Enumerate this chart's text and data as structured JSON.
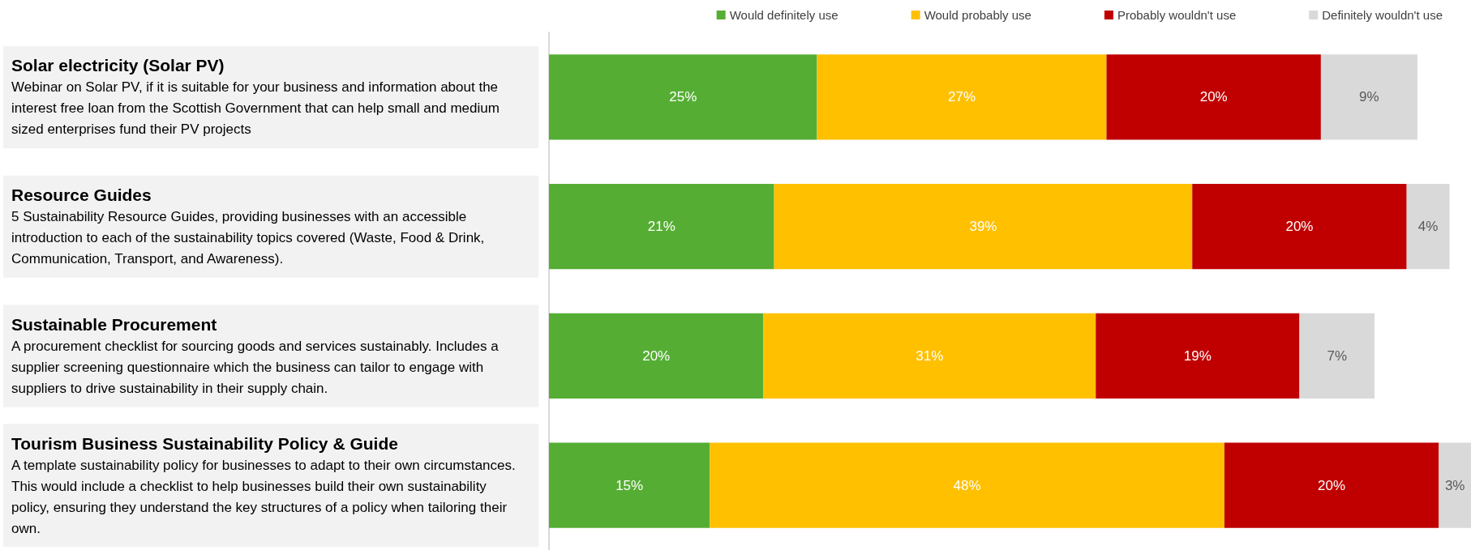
{
  "chart_data": {
    "type": "bar",
    "orientation": "horizontal",
    "stacked": true,
    "legend": "top right",
    "categories": [
      "Solar electricity (Solar PV)\nWebinar on Solar PV, if it is suitable for your business and information about the interest free loan from the Scottish Government that can help small and medium sized enterprises fund their PV projects",
      "Resource Guides\n5 Sustainability Resource Guides, providing businesses with an accessible introduction to each of the sustainability topics covered (Waste, Food & Drink, Communication, Transport, and Awareness).",
      "Sustainable Procurement\nA procurement checklist for sourcing goods and services sustainably. Includes a supplier screening questionnaire which the business can tailor to engage with suppliers to drive sustainability in their supply chain.",
      "Tourism Business Sustainability Policy & Guide\nA template sustainability policy for businesses to adapt to their own circumstances. This would include a checklist to help businesses build their own sustainability policy, ensuring they understand the key structures of a policy when tailoring their own."
    ],
    "series": [
      {
        "name": "Would definitely use",
        "color": "#55ae33",
        "values": [
          25,
          21,
          20,
          15
        ],
        "value_labels": [
          "25%",
          "21%",
          "20%",
          "15%"
        ]
      },
      {
        "name": "Would probably use",
        "color": "#ffc000",
        "values": [
          27,
          39,
          31,
          48
        ],
        "value_labels": [
          "27%",
          "39%",
          "31%",
          "48%"
        ]
      },
      {
        "name": "Probably wouldn't use",
        "color": "#c00000",
        "values": [
          20,
          20,
          19,
          20
        ],
        "value_labels": [
          "20%",
          "20%",
          "19%",
          "20%"
        ]
      },
      {
        "name": "Definitely wouldn't use",
        "color": "#d9d9d9",
        "values": [
          9,
          4,
          7,
          3
        ],
        "value_labels": [
          "9%",
          "4%",
          "7%",
          "3%"
        ]
      }
    ]
  }
}
